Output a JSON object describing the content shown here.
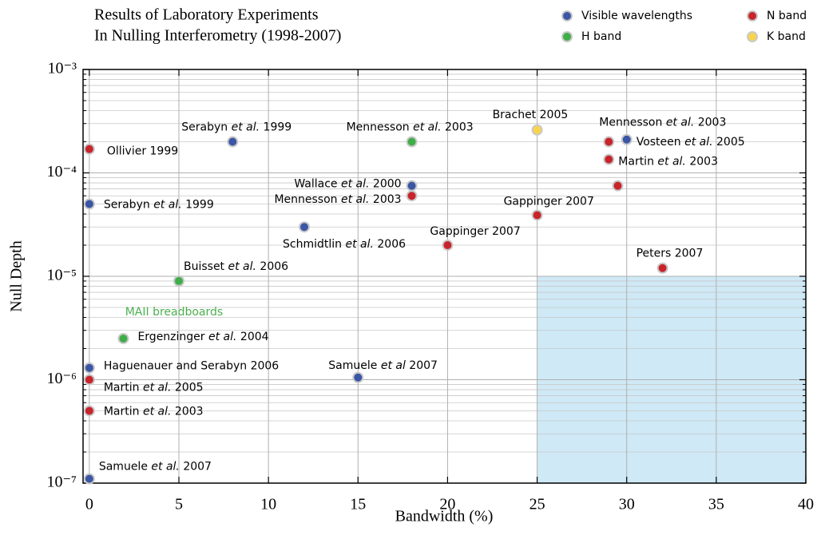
{
  "chart_data": {
    "type": "scatter",
    "title": [
      "Results of Laboratory Experiments",
      "In Nulling Interferometry (1998-2007)"
    ],
    "xlabel": "Bandwidth (%)",
    "ylabel": "Null Depth",
    "xlim": [
      -0.35,
      40
    ],
    "ylim": [
      1e-07,
      0.001
    ],
    "yscale": "log",
    "grid": true,
    "legend": "top-right",
    "xticks": [
      0,
      5,
      10,
      15,
      20,
      25,
      30,
      35,
      40
    ],
    "yticks": [
      {
        "value": 1e-07,
        "label": "10⁻⁷"
      },
      {
        "value": 1e-06,
        "label": "10⁻⁶"
      },
      {
        "value": 1e-05,
        "label": "10⁻⁵"
      },
      {
        "value": 0.0001,
        "label": "10⁻⁴"
      },
      {
        "value": 0.001,
        "label": "10⁻³"
      }
    ],
    "yminor": [
      2e-07,
      3e-07,
      4e-07,
      5e-07,
      6e-07,
      7e-07,
      8e-07,
      9e-07,
      2e-06,
      3e-06,
      4e-06,
      5e-06,
      6e-06,
      7e-06,
      8e-06,
      9e-06,
      2e-05,
      3e-05,
      4e-05,
      5e-05,
      6e-05,
      7e-05,
      8e-05,
      9e-05,
      0.0002,
      0.0003,
      0.0004,
      0.0005,
      0.0006,
      0.0007,
      0.0008,
      0.0009
    ],
    "shaded_region": {
      "x": [
        25,
        40
      ],
      "y": [
        1e-07,
        1e-05
      ],
      "color": "#cfe9f6"
    },
    "annotations": [
      {
        "text": "MAII breadboards",
        "x": 2,
        "y": 5e-06,
        "color": "#4cb04f"
      }
    ],
    "series": [
      {
        "name": "Visible wavelengths",
        "color": "#3b56a5",
        "x": [
          8,
          0,
          18,
          12,
          30,
          0,
          15,
          0
        ],
        "values": [
          0.0002,
          5e-05,
          7.5e-05,
          3e-05,
          0.00021,
          1.3e-06,
          1.05e-06,
          1.1e-07
        ],
        "point_labels": [
          "Serabyn et al. 1999",
          "Serabyn et al. 1999",
          "Wallace et al. 2000",
          "Schmidtlin et al. 2006",
          "Vosteen et al. 2005",
          "Haguenauer and Serabyn 2006",
          "Samuele et al 2007",
          "Samuele et al. 2007"
        ]
      },
      {
        "name": "H band",
        "color": "#3fae49",
        "x": [
          18,
          5,
          1.9
        ],
        "values": [
          0.0002,
          9e-06,
          2.5e-06
        ],
        "point_labels": [
          "Mennesson et al. 2003",
          "Buisset et al. 2006",
          "Ergenzinger et al. 2004"
        ]
      },
      {
        "name": "N band",
        "color": "#c8242b",
        "x": [
          0,
          18,
          20,
          25,
          29,
          29,
          29.5,
          32,
          0,
          0
        ],
        "values": [
          0.00017,
          6e-05,
          2e-05,
          3.9e-05,
          0.0002,
          0.000135,
          7.5e-05,
          1.2e-05,
          1e-06,
          5e-07
        ],
        "point_labels": [
          "Ollivier 1999",
          "Mennesson et al. 2003",
          "Gappinger 2007",
          "Gappinger 2007",
          "Mennesson et al. 2003",
          "Martin et al. 2003",
          null,
          "Peters 2007",
          "Martin et al. 2005",
          "Martin et al. 2003"
        ]
      },
      {
        "name": "K band",
        "color": "#f7d44c",
        "x": [
          25
        ],
        "values": [
          0.00026
        ],
        "point_labels": [
          "Brachet 2005"
        ]
      }
    ]
  }
}
